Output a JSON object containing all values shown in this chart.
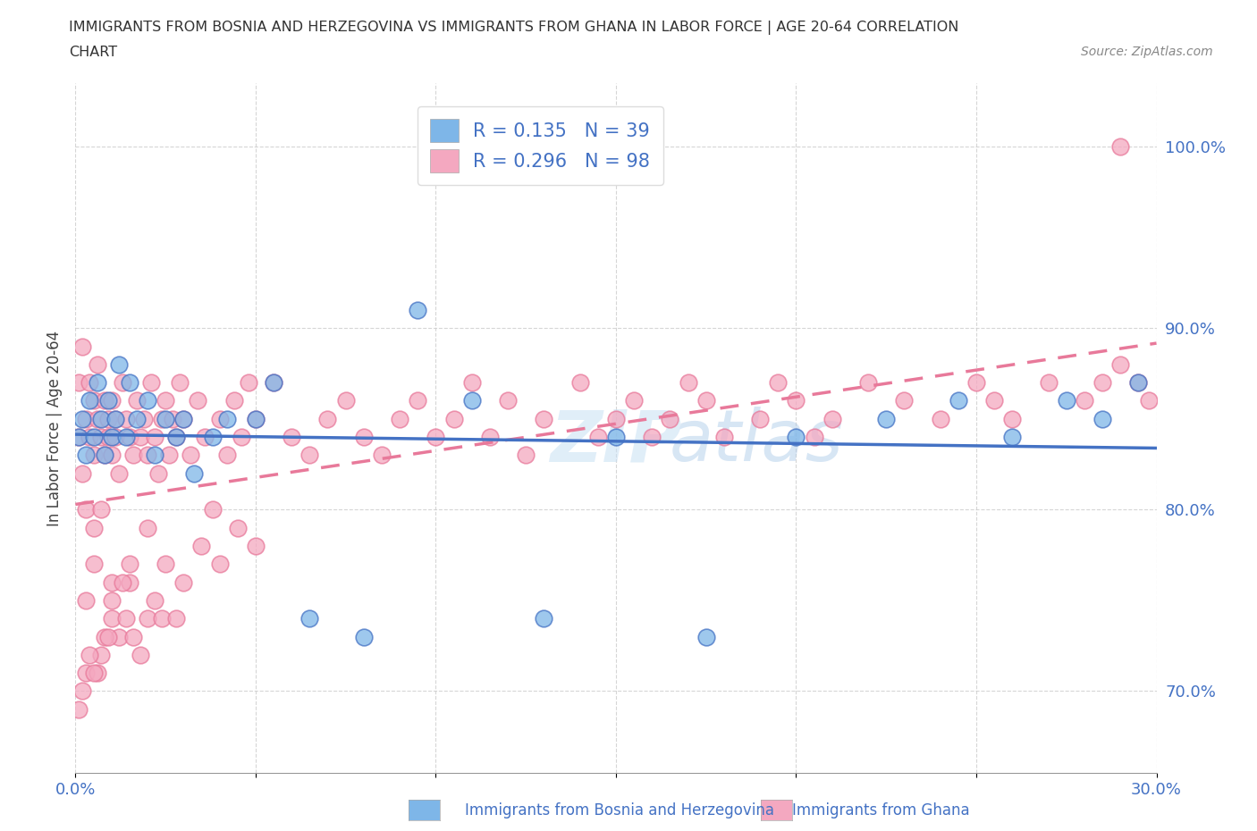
{
  "title_line1": "IMMIGRANTS FROM BOSNIA AND HERZEGOVINA VS IMMIGRANTS FROM GHANA IN LABOR FORCE | AGE 20-64 CORRELATION",
  "title_line2": "CHART",
  "source_text": "Source: ZipAtlas.com",
  "ylabel": "In Labor Force | Age 20-64",
  "xlim": [
    0.0,
    0.3
  ],
  "ylim": [
    0.655,
    1.035
  ],
  "x_ticks": [
    0.0,
    0.05,
    0.1,
    0.15,
    0.2,
    0.25,
    0.3
  ],
  "y_ticks": [
    0.7,
    0.8,
    0.9,
    1.0
  ],
  "y_tick_labels": [
    "70.0%",
    "80.0%",
    "90.0%",
    "100.0%"
  ],
  "bosnia_color": "#7EB6E8",
  "ghana_color": "#F4A8C0",
  "bosnia_edge_color": "#4472C4",
  "ghana_edge_color": "#E8799A",
  "bosnia_line_color": "#4472C4",
  "ghana_line_color": "#E8799A",
  "bosnia_R": 0.135,
  "bosnia_N": 39,
  "ghana_R": 0.296,
  "ghana_N": 98,
  "watermark_text": "ZIPatlas",
  "legend_label_bosnia": "Immigrants from Bosnia and Herzegovina",
  "legend_label_ghana": "Immigrants from Ghana",
  "bosnia_x": [
    0.001,
    0.002,
    0.003,
    0.004,
    0.005,
    0.006,
    0.007,
    0.008,
    0.009,
    0.01,
    0.011,
    0.012,
    0.014,
    0.015,
    0.017,
    0.02,
    0.022,
    0.025,
    0.028,
    0.03,
    0.033,
    0.038,
    0.042,
    0.05,
    0.055,
    0.065,
    0.08,
    0.095,
    0.11,
    0.13,
    0.15,
    0.175,
    0.2,
    0.225,
    0.245,
    0.26,
    0.275,
    0.285,
    0.295
  ],
  "bosnia_y": [
    0.84,
    0.85,
    0.83,
    0.86,
    0.84,
    0.87,
    0.85,
    0.83,
    0.86,
    0.84,
    0.85,
    0.88,
    0.84,
    0.87,
    0.85,
    0.86,
    0.83,
    0.85,
    0.84,
    0.85,
    0.82,
    0.84,
    0.85,
    0.85,
    0.87,
    0.74,
    0.73,
    0.91,
    0.86,
    0.74,
    0.84,
    0.73,
    0.84,
    0.85,
    0.86,
    0.84,
    0.86,
    0.85,
    0.87
  ],
  "ghana_x": [
    0.001,
    0.001,
    0.002,
    0.002,
    0.003,
    0.003,
    0.004,
    0.004,
    0.005,
    0.005,
    0.006,
    0.006,
    0.007,
    0.007,
    0.008,
    0.008,
    0.009,
    0.009,
    0.01,
    0.01,
    0.011,
    0.011,
    0.012,
    0.013,
    0.014,
    0.015,
    0.016,
    0.017,
    0.018,
    0.019,
    0.02,
    0.021,
    0.022,
    0.023,
    0.024,
    0.025,
    0.026,
    0.027,
    0.028,
    0.029,
    0.03,
    0.032,
    0.034,
    0.036,
    0.038,
    0.04,
    0.042,
    0.044,
    0.046,
    0.048,
    0.05,
    0.055,
    0.06,
    0.065,
    0.07,
    0.075,
    0.08,
    0.085,
    0.09,
    0.095,
    0.1,
    0.105,
    0.11,
    0.115,
    0.12,
    0.125,
    0.13,
    0.14,
    0.145,
    0.15,
    0.155,
    0.16,
    0.165,
    0.17,
    0.175,
    0.18,
    0.19,
    0.195,
    0.2,
    0.205,
    0.21,
    0.22,
    0.23,
    0.24,
    0.25,
    0.255,
    0.26,
    0.27,
    0.28,
    0.285,
    0.29,
    0.295,
    0.298,
    0.005,
    0.01,
    0.015,
    0.02,
    0.29
  ],
  "ghana_y": [
    0.84,
    0.87,
    0.82,
    0.89,
    0.85,
    0.8,
    0.84,
    0.87,
    0.83,
    0.86,
    0.85,
    0.88,
    0.84,
    0.8,
    0.86,
    0.83,
    0.85,
    0.84,
    0.83,
    0.86,
    0.85,
    0.84,
    0.82,
    0.87,
    0.85,
    0.84,
    0.83,
    0.86,
    0.84,
    0.85,
    0.83,
    0.87,
    0.84,
    0.82,
    0.85,
    0.86,
    0.83,
    0.85,
    0.84,
    0.87,
    0.85,
    0.83,
    0.86,
    0.84,
    0.8,
    0.85,
    0.83,
    0.86,
    0.84,
    0.87,
    0.85,
    0.87,
    0.84,
    0.83,
    0.85,
    0.86,
    0.84,
    0.83,
    0.85,
    0.86,
    0.84,
    0.85,
    0.87,
    0.84,
    0.86,
    0.83,
    0.85,
    0.87,
    0.84,
    0.85,
    0.86,
    0.84,
    0.85,
    0.87,
    0.86,
    0.84,
    0.85,
    0.87,
    0.86,
    0.84,
    0.85,
    0.87,
    0.86,
    0.85,
    0.87,
    0.86,
    0.85,
    0.87,
    0.86,
    0.87,
    0.88,
    0.87,
    0.86,
    0.77,
    0.75,
    0.76,
    0.74,
    1.0
  ],
  "ghana_low_x": [
    0.005,
    0.01,
    0.015,
    0.02,
    0.025,
    0.03,
    0.035,
    0.04,
    0.045,
    0.05,
    0.003,
    0.007,
    0.012,
    0.018,
    0.024,
    0.003,
    0.008,
    0.013,
    0.002,
    0.006,
    0.01,
    0.016,
    0.022,
    0.028,
    0.004,
    0.009,
    0.014,
    0.001,
    0.005
  ],
  "ghana_low_y": [
    0.79,
    0.76,
    0.77,
    0.79,
    0.77,
    0.76,
    0.78,
    0.77,
    0.79,
    0.78,
    0.71,
    0.72,
    0.73,
    0.72,
    0.74,
    0.75,
    0.73,
    0.76,
    0.7,
    0.71,
    0.74,
    0.73,
    0.75,
    0.74,
    0.72,
    0.73,
    0.74,
    0.69,
    0.71
  ]
}
